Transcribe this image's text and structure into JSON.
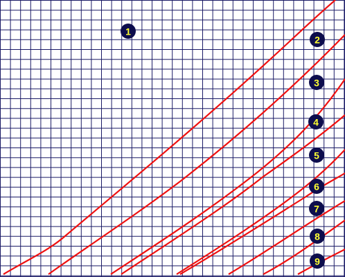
{
  "markers": [
    {
      "label": "1"
    },
    {
      "label": "2"
    },
    {
      "label": "3"
    },
    {
      "label": "4"
    },
    {
      "label": "5"
    },
    {
      "label": "6"
    },
    {
      "label": "7"
    },
    {
      "label": "8"
    },
    {
      "label": "9"
    }
  ]
}
